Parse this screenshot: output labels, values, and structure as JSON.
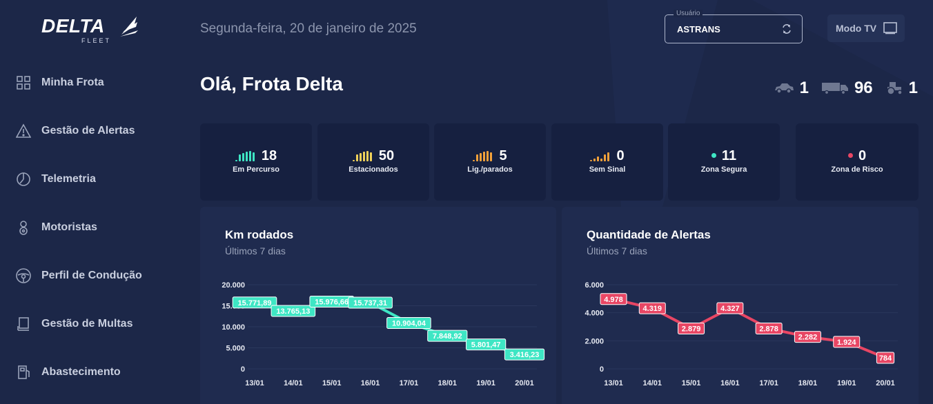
{
  "sidebar": {
    "logo": {
      "word": "DELTA",
      "sub": "FLEET"
    },
    "items": [
      {
        "label": "Minha Frota",
        "icon": "grid-icon"
      },
      {
        "label": "Gestão de Alertas",
        "icon": "warning-icon"
      },
      {
        "label": "Telemetria",
        "icon": "gauge-icon"
      },
      {
        "label": "Motoristas",
        "icon": "driver-icon"
      },
      {
        "label": "Perfil de Condução",
        "icon": "steering-wheel-icon"
      },
      {
        "label": "Gestão de Multas",
        "icon": "ticket-icon"
      },
      {
        "label": "Abastecimento",
        "icon": "fuel-icon"
      }
    ]
  },
  "header": {
    "date": "Segunda-feira, 20 de janeiro de 2025",
    "user_legend": "Usuário",
    "user_value": "ASTRANS",
    "tv_label": "Modo TV"
  },
  "greeting": "Olá, Frota Delta",
  "vehicle_counts": {
    "cars": "1",
    "trucks": "96",
    "tractors": "1"
  },
  "colors": {
    "teal": "#3ee6c4",
    "yellow": "#f0d15a",
    "orange": "#f3a13a",
    "red": "#e84664",
    "background": "#1c2748"
  },
  "status_cards": [
    {
      "value": "18",
      "label": "Em Percurso",
      "indicator": "signal-bars",
      "color": "#3ee6c4"
    },
    {
      "value": "50",
      "label": "Estacionados",
      "indicator": "signal-bars",
      "color": "#f0d15a"
    },
    {
      "value": "5",
      "label": "Lig./parados",
      "indicator": "signal-bars",
      "color": "#f3a13a"
    },
    {
      "value": "0",
      "label": "Sem Sinal",
      "indicator": "signal-bars-weak",
      "color": "#f3a13a"
    },
    {
      "value": "11",
      "label": "Zona Segura",
      "indicator": "dot",
      "color": "#3ee6c4"
    },
    {
      "value": "0",
      "label": "Zona de Risco",
      "indicator": "dot",
      "color": "#e84664"
    }
  ],
  "km_panel": {
    "title": "Km rodados",
    "subtitle": "Últimos 7 dias"
  },
  "alerts_panel": {
    "title": "Quantidade de Alertas",
    "subtitle": "Últimos 7 dias"
  },
  "chart_data": [
    {
      "type": "line",
      "title": "Km rodados",
      "categories": [
        "13/01",
        "14/01",
        "15/01",
        "16/01",
        "17/01",
        "18/01",
        "19/01",
        "20/01"
      ],
      "values": [
        15771.89,
        13765.13,
        15976.66,
        15737.31,
        10904.04,
        7848.92,
        5801.47,
        3416.23
      ],
      "data_labels": [
        "15.771,89",
        "13.765,13",
        "15.976,66",
        "15.737,31",
        "10.904,04",
        "7.848,92",
        "5.801,47",
        "3.416,23"
      ],
      "yticks": [
        "0",
        "5.000",
        "10.000",
        "15.000",
        "20.000"
      ],
      "ylim": [
        0,
        20000
      ],
      "color": "#3ee6c4"
    },
    {
      "type": "line",
      "title": "Quantidade de Alertas",
      "categories": [
        "13/01",
        "14/01",
        "15/01",
        "16/01",
        "17/01",
        "18/01",
        "19/01",
        "20/01"
      ],
      "values": [
        4978,
        4319,
        2879,
        4327,
        2878,
        2282,
        1924,
        784
      ],
      "data_labels": [
        "4.978",
        "4.319",
        "2.879",
        "4.327",
        "2.878",
        "2.282",
        "1.924",
        "784"
      ],
      "yticks": [
        "0",
        "2.000",
        "4.000",
        "6.000"
      ],
      "ylim": [
        0,
        6000
      ],
      "color": "#e84664"
    }
  ]
}
